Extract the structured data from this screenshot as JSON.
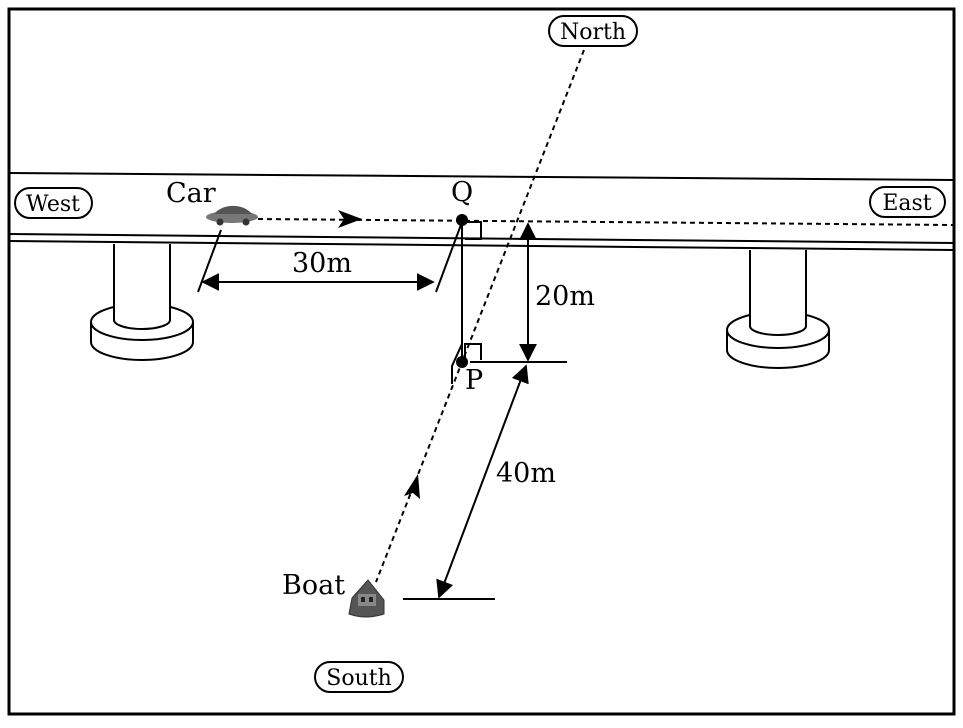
{
  "compass": {
    "north": "North",
    "south": "South",
    "east": "East",
    "west": "West"
  },
  "labels": {
    "car": "Car",
    "boat": "Boat",
    "point_q": "Q",
    "point_p": "P"
  },
  "measurements": {
    "car_to_q": "30m",
    "q_to_p": "20m",
    "p_to_boat": "40m"
  },
  "colors": {
    "stroke": "#000000",
    "background": "#ffffff",
    "vehicle": "#555555"
  }
}
